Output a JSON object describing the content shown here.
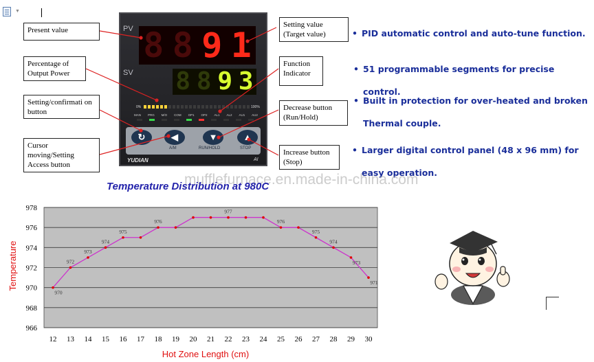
{
  "controller": {
    "pv_label": "PV",
    "sv_label": "SV",
    "pv_digits": [
      "8",
      "8",
      "9",
      "1"
    ],
    "sv_digits": [
      "8",
      "8",
      "9",
      "3"
    ],
    "bar_min_label": "0%",
    "bar_max_label": "100%",
    "indicator_labels": [
      "MAN",
      "PRG",
      "M/O",
      "COM",
      "OP1",
      "OP2",
      "AL1",
      "AL2",
      "AU1",
      "AU2"
    ],
    "keys": [
      {
        "glyph": "↻",
        "caption": ""
      },
      {
        "glyph": "◀",
        "caption": "A/M"
      },
      {
        "glyph": "▼",
        "caption": "RUN/HOLD"
      },
      {
        "glyph": "▲",
        "caption": "STOP"
      }
    ],
    "brand": "YUDIAN",
    "model": "AI"
  },
  "callouts": {
    "present_value": "Present value",
    "output_power": "Percentage of Output Power",
    "setting_button": "Setting/confirmati on button",
    "cursor_button": "Cursor moving/Setting Access button",
    "setting_value": "Setting value (Target value)",
    "function_indicator": "Function Indicator",
    "decrease_button": "Decrease button (Run/Hold)",
    "increase_button": "Increase button (Stop)"
  },
  "features": [
    {
      "bullet": "•",
      "text": "PID automatic control and auto-tune function."
    },
    {
      "bullet": "•",
      "text": "51 programmable segments for precise control."
    },
    {
      "bullet": "•",
      "text": "Built in protection for over-heated and broken Thermal couple."
    },
    {
      "bullet": "•",
      "text": "Larger digital control panel (48 x 96 mm) for easy operation."
    }
  ],
  "watermark": "mufflefurnace.en.made-in-china.com",
  "chart_data": {
    "type": "line",
    "title": "Temperature Distribution at 980C",
    "xlabel": "Hot Zone Length (cm)",
    "ylabel": "Temperature",
    "x": [
      12,
      13,
      14,
      15,
      16,
      17,
      18,
      19,
      20,
      21,
      22,
      23,
      24,
      25,
      26,
      27,
      28,
      29,
      30
    ],
    "xlim": [
      12,
      30
    ],
    "ylim": [
      966,
      978
    ],
    "yticks": [
      966,
      968,
      970,
      972,
      974,
      976,
      978
    ],
    "grid": true,
    "series": [
      {
        "points": [
          {
            "x": 12,
            "y": 970,
            "label": "970"
          },
          {
            "x": 13,
            "y": 972,
            "label": "972"
          },
          {
            "x": 14,
            "y": 973,
            "label": "973"
          },
          {
            "x": 15,
            "y": 974,
            "label": "974"
          },
          {
            "x": 16,
            "y": 975,
            "label": "975"
          },
          {
            "x": 17,
            "y": 975,
            "label": ""
          },
          {
            "x": 18,
            "y": 976,
            "label": "976"
          },
          {
            "x": 19,
            "y": 976,
            "label": ""
          },
          {
            "x": 20,
            "y": 977,
            "label": ""
          },
          {
            "x": 21,
            "y": 977,
            "label": ""
          },
          {
            "x": 22,
            "y": 977,
            "label": "977"
          },
          {
            "x": 23,
            "y": 977,
            "label": ""
          },
          {
            "x": 24,
            "y": 977,
            "label": ""
          },
          {
            "x": 25,
            "y": 976,
            "label": "976"
          },
          {
            "x": 26,
            "y": 976,
            "label": ""
          },
          {
            "x": 27,
            "y": 975,
            "label": "975"
          },
          {
            "x": 28,
            "y": 974,
            "label": "974"
          },
          {
            "x": 29,
            "y": 973,
            "label": "973"
          },
          {
            "x": 30,
            "y": 971,
            "label": "971"
          }
        ],
        "line_color": "#cc33cc",
        "marker_color": "#e00000"
      }
    ],
    "plot_bg": "#c0c0c0"
  }
}
